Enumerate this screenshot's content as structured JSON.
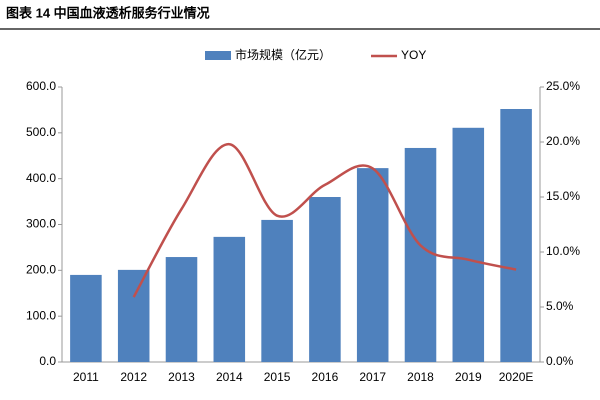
{
  "chart_data": {
    "type": "bar-line",
    "title": "图表 14 中国血液透析服务行业情况",
    "categories": [
      "2011",
      "2012",
      "2013",
      "2014",
      "2015",
      "2016",
      "2017",
      "2018",
      "2019",
      "2020E"
    ],
    "series": [
      {
        "name": "市场规模（亿元）",
        "type": "bar",
        "color": "#4f81bd",
        "values": [
          190,
          201,
          229,
          273,
          310,
          360,
          423,
          467,
          511,
          552
        ]
      },
      {
        "name": "YOY",
        "type": "line",
        "axis": "y2",
        "color": "#c0504d",
        "values": [
          null,
          5.9,
          13.9,
          19.8,
          13.3,
          16.1,
          17.6,
          10.6,
          9.3,
          8.4
        ]
      }
    ],
    "ylim": [
      0,
      600
    ],
    "yticks": [
      {
        "value": 0,
        "label": "0.0"
      },
      {
        "value": 100,
        "label": "100.0"
      },
      {
        "value": 200,
        "label": "200.0"
      },
      {
        "value": 300,
        "label": "300.0"
      },
      {
        "value": 400,
        "label": "400.0"
      },
      {
        "value": 500,
        "label": "500.0"
      },
      {
        "value": 600,
        "label": "600.0"
      }
    ],
    "y2lim": [
      0,
      25
    ],
    "y2ticks": [
      {
        "value": 0,
        "label": "0.0%"
      },
      {
        "value": 5,
        "label": "5.0%"
      },
      {
        "value": 10,
        "label": "10.0%"
      },
      {
        "value": 15,
        "label": "15.0%"
      },
      {
        "value": 20,
        "label": "20.0%"
      },
      {
        "value": 25,
        "label": "25.0%"
      }
    ],
    "grid": false
  }
}
